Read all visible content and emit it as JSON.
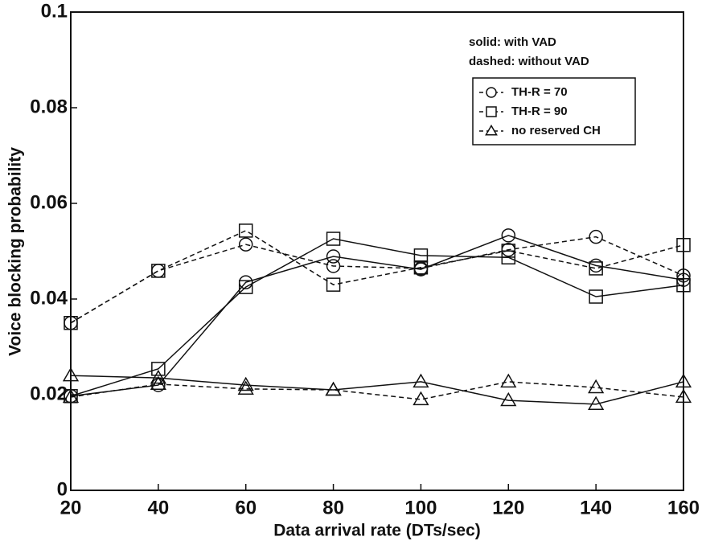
{
  "chart_data": {
    "type": "line",
    "xlabel": "Data arrival rate (DTs/sec)",
    "ylabel": "Voice blocking probability",
    "notes": [
      "solid: with VAD",
      "dashed: without VAD"
    ],
    "legend": [
      {
        "label": "TH-R = 70",
        "marker": "circle"
      },
      {
        "label": "TH-R = 90",
        "marker": "square"
      },
      {
        "label": "no reserved CH",
        "marker": "triangle"
      }
    ],
    "x": [
      20,
      40,
      60,
      80,
      100,
      120,
      140,
      160
    ],
    "series": [
      {
        "marker": "circle",
        "dashed": false,
        "color": "#111111",
        "values": [
          0.0197,
          0.022,
          0.0435,
          0.0489,
          0.0462,
          0.0533,
          0.047,
          0.044
        ]
      },
      {
        "marker": "circle",
        "dashed": true,
        "color": "#111111",
        "values": [
          0.035,
          0.0459,
          0.0514,
          0.0469,
          0.0464,
          0.0503,
          0.053,
          0.0449
        ]
      },
      {
        "marker": "square",
        "dashed": false,
        "color": "#111111",
        "values": [
          0.0197,
          0.0254,
          0.0425,
          0.0526,
          0.0491,
          0.0487,
          0.0405,
          0.0429
        ]
      },
      {
        "marker": "square",
        "dashed": true,
        "color": "#111111",
        "values": [
          0.035,
          0.0459,
          0.0543,
          0.043,
          0.0466,
          0.0501,
          0.0464,
          0.0513
        ]
      },
      {
        "marker": "triangle",
        "dashed": false,
        "color": "#111111",
        "values": [
          0.024,
          0.0235,
          0.022,
          0.021,
          0.0227,
          0.0188,
          0.018,
          0.0227
        ]
      },
      {
        "marker": "triangle",
        "dashed": true,
        "color": "#111111",
        "values": [
          0.0195,
          0.0222,
          0.0212,
          0.021,
          0.019,
          0.0227,
          0.0215,
          0.0195
        ]
      }
    ],
    "xlim": [
      20,
      160
    ],
    "xticks": [
      20,
      40,
      60,
      80,
      100,
      120,
      140,
      160
    ],
    "ylim": [
      0,
      0.1
    ],
    "yticks": [
      0,
      0.02,
      0.04,
      0.06,
      0.08,
      0.1
    ]
  }
}
